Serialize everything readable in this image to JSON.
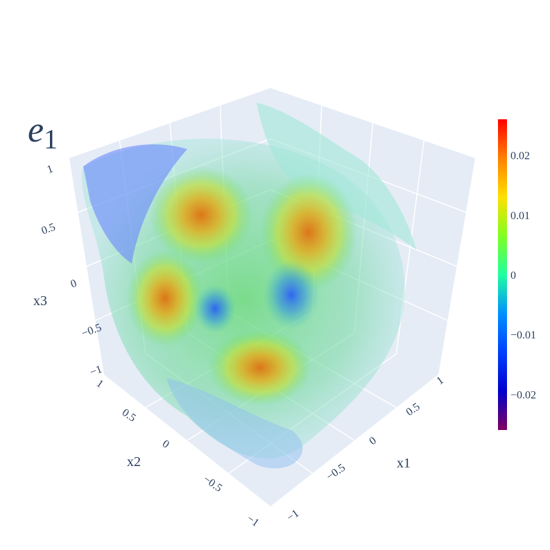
{
  "chart_data": {
    "type": "isosurface",
    "title": "e",
    "title_subscript": "1",
    "scene": {
      "xaxis": {
        "title": "x1",
        "range": [
          -1,
          1
        ],
        "ticks": [
          "−1",
          "−0.5",
          "0",
          "0.5",
          "1"
        ]
      },
      "yaxis": {
        "title": "x2",
        "range": [
          -1,
          1
        ],
        "ticks": [
          "−1",
          "−0.5",
          "0",
          "0.5",
          "1"
        ]
      },
      "zaxis": {
        "title": "x3",
        "range": [
          -1,
          1
        ],
        "ticks": [
          "−1",
          "−0.5",
          "0",
          "0.5",
          "1"
        ]
      },
      "background": "#e5ecf6",
      "grid": true
    },
    "colorbar": {
      "colorscale": "Rainbow (purple-blue-cyan-green-yellow-orange-red)",
      "range": [
        -0.026,
        0.026
      ],
      "ticks": [
        "0.02",
        "0.01",
        "0",
        "−0.01",
        "−0.02"
      ],
      "tick_values": [
        0.02,
        0.01,
        0,
        -0.01,
        -0.02
      ],
      "colors": [
        "#800060",
        "#0000cc",
        "#0040ff",
        "#0090ff",
        "#20ffa0",
        "#80ff20",
        "#ffe000",
        "#ff8000",
        "#ff0000"
      ]
    },
    "hotspots_positive": 4,
    "hotspots_negative": 2
  }
}
